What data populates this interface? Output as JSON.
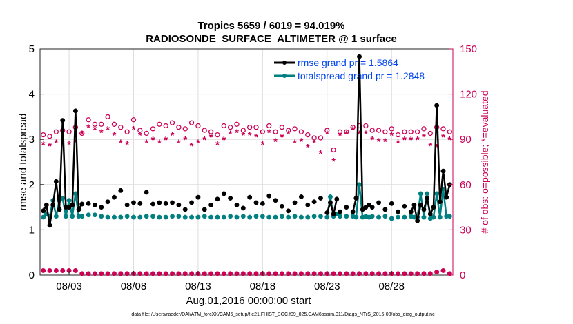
{
  "chart_data": {
    "type": "line",
    "title_line1": "Tropics 5659 / 6019 = 94.019%",
    "title_line2": "RADIOSONDE_SURFACE_ALTIMETER @ 1 surface",
    "xlabel": "Aug.01,2016 00:00:00 start",
    "ylabel_left": "rmse and totalspread",
    "ylabel_right": "# of obs: o=possible; *=evaluated",
    "footnote": "data file: /Users/raeder/DAI/ATM_forcXX/CAM6_setup/f.e21.FHIST_BGC.f09_025.CAM6assim.011/Diags_NTrS_2016-08/obs_diag_output.nc",
    "xlim": [
      0.75,
      32.75
    ],
    "ylim_left": [
      0,
      5
    ],
    "ylim_right": [
      0,
      150
    ],
    "x_ticks": [
      {
        "value": 3,
        "label": "08/03"
      },
      {
        "value": 8,
        "label": "08/08"
      },
      {
        "value": 13,
        "label": "08/13"
      },
      {
        "value": 18,
        "label": "08/18"
      },
      {
        "value": 23,
        "label": "08/23"
      },
      {
        "value": 28,
        "label": "08/28"
      }
    ],
    "y_ticks_left": [
      "0",
      "1",
      "2",
      "3",
      "4",
      "5"
    ],
    "y_ticks_right": [
      "0",
      "30",
      "60",
      "90",
      "120",
      "150"
    ],
    "colors": {
      "rmse": "#000000",
      "spread": "#008080",
      "obs": "#cc0055",
      "legend_text": "#0044ee",
      "right_axis": "#cc0055"
    },
    "legend": [
      {
        "label": "rmse grand pr = 1.5864"
      },
      {
        "label": "totalspread grand pr = 1.2848"
      }
    ],
    "series_rmse": {
      "name": "rmse",
      "x": [
        1.0,
        1.25,
        1.5,
        1.75,
        2.0,
        2.25,
        2.5,
        2.75,
        3.0,
        3.25,
        3.5,
        3.75,
        4.0,
        4.5,
        5.0,
        5.5,
        6.0,
        6.5,
        7.0,
        7.5,
        8.0,
        8.5,
        9.0,
        9.5,
        10.0,
        10.5,
        11.0,
        11.5,
        12.0,
        12.5,
        13.0,
        13.5,
        14.0,
        14.5,
        15.0,
        15.5,
        16.0,
        16.5,
        17.0,
        17.5,
        18.0,
        18.5,
        19.0,
        19.5,
        20.0,
        20.5,
        21.0,
        21.5,
        22.0,
        22.5,
        23.0,
        23.25,
        23.5,
        23.75,
        24.0,
        24.5,
        25.0,
        25.25,
        25.5,
        25.75,
        26.0,
        26.25,
        26.5,
        27.0,
        27.5,
        28.0,
        28.5,
        29.0,
        29.5,
        29.75,
        30.0,
        30.25,
        30.5,
        30.75,
        31.0,
        31.25,
        31.5,
        31.75,
        32.0,
        32.25,
        32.5
      ],
      "y": [
        1.42,
        1.55,
        1.1,
        1.55,
        2.07,
        1.45,
        3.42,
        1.5,
        1.5,
        1.55,
        3.63,
        1.45,
        1.57,
        1.58,
        1.55,
        1.5,
        1.62,
        1.72,
        1.87,
        1.55,
        1.6,
        1.58,
        1.83,
        1.57,
        1.6,
        1.58,
        1.6,
        1.55,
        1.45,
        1.6,
        1.72,
        1.45,
        1.55,
        1.68,
        1.8,
        1.7,
        1.55,
        1.48,
        1.72,
        1.6,
        1.58,
        1.75,
        1.65,
        1.52,
        1.42,
        1.6,
        1.73,
        1.55,
        1.62,
        1.7,
        1.38,
        1.6,
        1.35,
        1.68,
        1.4,
        1.5,
        1.4,
        1.7,
        4.83,
        1.45,
        1.5,
        1.55,
        1.5,
        1.6,
        1.45,
        1.58,
        1.4,
        1.52,
        1.4,
        1.55,
        1.2,
        1.55,
        1.45,
        1.7,
        1.35,
        1.5,
        3.75,
        1.62,
        2.3,
        1.72,
        2.0
      ],
      "connected": [
        [
          0,
          12
        ],
        [
          50,
          53
        ],
        [
          56,
          61
        ],
        [
          68,
          80
        ]
      ]
    },
    "series_spread": {
      "name": "totalspread",
      "x": [
        1.0,
        1.25,
        1.5,
        1.75,
        2.0,
        2.25,
        2.5,
        2.75,
        3.0,
        3.25,
        3.5,
        3.75,
        4.0,
        4.5,
        5.0,
        5.5,
        6.0,
        6.5,
        7.0,
        7.5,
        8.0,
        8.5,
        9.0,
        9.5,
        10.0,
        10.5,
        11.0,
        11.5,
        12.0,
        12.5,
        13.0,
        13.5,
        14.0,
        14.5,
        15.0,
        15.5,
        16.0,
        16.5,
        17.0,
        17.5,
        18.0,
        18.5,
        19.0,
        19.5,
        20.0,
        20.5,
        21.0,
        21.5,
        22.0,
        22.5,
        23.0,
        23.25,
        23.5,
        23.75,
        24.0,
        24.5,
        25.0,
        25.25,
        25.5,
        25.75,
        26.0,
        26.25,
        26.5,
        27.0,
        27.5,
        28.0,
        28.5,
        29.0,
        29.5,
        29.75,
        30.0,
        30.25,
        30.5,
        30.75,
        31.0,
        31.25,
        31.5,
        31.75,
        32.0,
        32.25,
        32.5
      ],
      "y": [
        1.28,
        1.35,
        1.3,
        1.65,
        1.3,
        1.65,
        1.7,
        1.3,
        1.65,
        1.3,
        1.8,
        1.3,
        1.3,
        1.33,
        1.33,
        1.3,
        1.28,
        1.28,
        1.28,
        1.3,
        1.28,
        1.28,
        1.3,
        1.3,
        1.28,
        1.28,
        1.3,
        1.3,
        1.28,
        1.28,
        1.28,
        1.3,
        1.28,
        1.28,
        1.28,
        1.3,
        1.28,
        1.3,
        1.28,
        1.3,
        1.3,
        1.28,
        1.28,
        1.3,
        1.28,
        1.3,
        1.28,
        1.28,
        1.3,
        1.3,
        1.28,
        1.73,
        1.3,
        1.35,
        1.3,
        1.3,
        1.3,
        1.28,
        2.0,
        1.28,
        1.3,
        1.28,
        1.3,
        1.28,
        1.3,
        1.25,
        1.28,
        1.28,
        1.3,
        1.28,
        1.28,
        1.8,
        1.28,
        1.8,
        1.25,
        1.28,
        1.8,
        1.28,
        1.9,
        1.3,
        1.3
      ],
      "connected": [
        [
          0,
          12
        ],
        [
          50,
          53
        ],
        [
          56,
          61
        ],
        [
          68,
          80
        ]
      ]
    },
    "obs_possible": {
      "x": [
        1.0,
        1.5,
        2.0,
        2.5,
        3.0,
        3.5,
        4.0,
        4.5,
        5.0,
        5.5,
        6.0,
        6.5,
        7.0,
        7.5,
        8.0,
        8.5,
        9.0,
        9.5,
        10.0,
        10.5,
        11.0,
        11.5,
        12.0,
        12.5,
        13.0,
        13.5,
        14.0,
        14.5,
        15.0,
        15.5,
        16.0,
        16.5,
        17.0,
        17.5,
        18.0,
        18.5,
        19.0,
        19.5,
        20.0,
        20.5,
        21.0,
        21.5,
        22.0,
        22.5,
        23.0,
        23.5,
        24.0,
        24.5,
        25.0,
        25.5,
        26.0,
        26.5,
        27.0,
        27.5,
        28.0,
        28.5,
        29.0,
        29.5,
        30.0,
        30.5,
        31.0,
        31.5,
        32.0,
        32.5
      ],
      "y": [
        93,
        92,
        95,
        96,
        95,
        98,
        94,
        103,
        100,
        100,
        105,
        100,
        98,
        95,
        103,
        96,
        94,
        97,
        100,
        99,
        101,
        98,
        97,
        101,
        99,
        96,
        95,
        93,
        99,
        98,
        100,
        96,
        98,
        98,
        95,
        99,
        95,
        98,
        96,
        97,
        95,
        93,
        91,
        91,
        96,
        83,
        95,
        95,
        98,
        99,
        99,
        96,
        96,
        95,
        97,
        93,
        95,
        95,
        95,
        97,
        94,
        98,
        97,
        95
      ]
    },
    "obs_evaluated": {
      "x": [
        1.0,
        1.5,
        2.0,
        2.5,
        3.0,
        3.5,
        4.0,
        4.5,
        5.0,
        5.5,
        6.0,
        6.5,
        7.0,
        7.5,
        8.0,
        8.5,
        9.0,
        9.5,
        10.0,
        10.5,
        11.0,
        11.5,
        12.0,
        12.5,
        13.0,
        13.5,
        14.0,
        14.5,
        15.0,
        15.5,
        16.0,
        16.5,
        17.0,
        17.5,
        18.0,
        18.5,
        19.0,
        19.5,
        20.0,
        20.5,
        21.0,
        21.5,
        22.0,
        22.5,
        23.0,
        23.5,
        24.0,
        24.5,
        25.0,
        25.5,
        26.0,
        26.5,
        27.0,
        27.5,
        28.0,
        28.5,
        29.0,
        29.5,
        30.0,
        30.5,
        31.0,
        31.5,
        32.0,
        32.5
      ],
      "y": [
        87,
        86,
        88,
        88,
        87,
        88,
        94,
        98,
        97,
        95,
        97,
        93,
        88,
        87,
        97,
        93,
        88,
        90,
        88,
        90,
        93,
        88,
        90,
        86,
        88,
        90,
        92,
        87,
        90,
        94,
        95,
        93,
        93,
        92,
        87,
        95,
        89,
        92,
        94,
        88,
        89,
        85,
        88,
        81,
        94,
        76,
        93,
        94,
        97,
        94,
        94,
        90,
        89,
        89,
        93,
        88,
        90,
        90,
        90,
        92,
        86,
        85,
        92,
        90
      ]
    },
    "obs_bottom": {
      "x": [
        1.0,
        1.5,
        2.0,
        2.5,
        3.0,
        3.5,
        4.0,
        4.5,
        5.0,
        5.5,
        6.0,
        6.5,
        7.0,
        7.5,
        8.0,
        8.5,
        9.0,
        9.5,
        10.0,
        10.5,
        11.0,
        11.5,
        12.0,
        12.5,
        13.0,
        13.5,
        14.0,
        14.5,
        15.0,
        15.5,
        16.0,
        16.5,
        17.0,
        17.5,
        18.0,
        18.5,
        19.0,
        19.5,
        20.0,
        20.5,
        21.0,
        21.5,
        22.0,
        22.5,
        23.0,
        23.5,
        24.0,
        24.5,
        25.0,
        25.5,
        26.0,
        26.5,
        27.0,
        27.5,
        28.0,
        28.5,
        29.0,
        29.5,
        30.0,
        30.5,
        31.0,
        31.5,
        32.0,
        32.5
      ],
      "y": [
        3,
        3,
        3,
        3,
        3,
        3,
        1,
        1,
        1,
        1,
        1,
        1,
        1,
        1,
        1,
        1,
        1,
        1,
        1,
        1,
        1,
        1,
        1,
        1,
        1,
        1,
        1,
        1,
        1,
        1,
        1,
        1,
        1,
        1,
        1,
        1,
        1,
        1,
        1,
        1,
        1,
        1,
        1,
        1,
        1,
        1,
        1,
        1,
        1,
        1,
        1,
        1,
        1,
        1,
        1,
        1,
        1,
        1,
        1,
        1,
        1,
        2,
        3,
        1
      ]
    }
  }
}
